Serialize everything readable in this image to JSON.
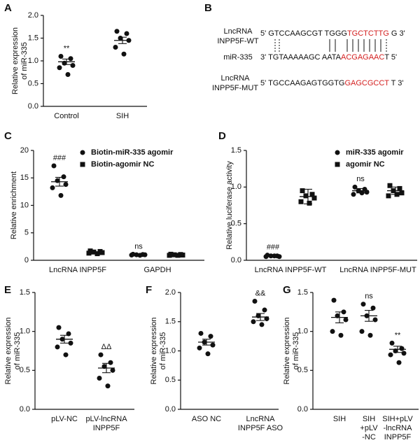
{
  "chart_data": [
    {
      "type": "dotplot",
      "label": "A",
      "ylabel": [
        "Relative expression",
        "of miR-335"
      ],
      "categories": [
        [
          "Control"
        ],
        [
          "SIH"
        ]
      ],
      "ylim": [
        0,
        2
      ],
      "yticks": [
        {
          "value": 0,
          "label": "0.0"
        },
        0.5,
        {
          "value": 1,
          "label": "1.0"
        },
        1.5,
        {
          "value": 2,
          "label": "2.0"
        }
      ],
      "series": [
        {
          "marker": "circle",
          "color": "#111111",
          "points": [
            [
              1.1,
              1.05,
              0.95,
              0.9,
              0.85,
              0.7
            ],
            [
              1.65,
              1.6,
              1.5,
              1.45,
              1.3,
              1.15
            ]
          ],
          "means": [
            0.98,
            1.45
          ],
          "errors": [
            0.06,
            0.07
          ],
          "annotations": [
            "**",
            null
          ]
        }
      ]
    },
    {
      "type": "dotplot",
      "label": "C",
      "ylabel": [
        "Relative enrichment"
      ],
      "categories": [
        [
          "LncRNA INPP5F"
        ],
        [
          "GAPDH"
        ]
      ],
      "ylim": [
        0,
        20
      ],
      "yticks": [
        0,
        5,
        10,
        15,
        20
      ],
      "series": [
        {
          "name": "Biotin-miR-335 agomir",
          "marker": "circle",
          "color": "#111111",
          "points": [
            [
              17.2,
              15.2,
              14.5,
              13.8,
              13.2,
              11.8
            ],
            [
              1.1,
              1.05,
              1.0,
              1.0,
              0.95,
              0.9
            ]
          ],
          "means": [
            14.3,
            1.0
          ],
          "errors": [
            0.8,
            0.03
          ],
          "annotations": [
            "###",
            "ns"
          ]
        },
        {
          "name": "Biotin-agomir NC",
          "marker": "square",
          "color": "#111111",
          "points": [
            [
              1.7,
              1.6,
              1.5,
              1.4,
              1.3,
              1.2
            ],
            [
              1.1,
              1.05,
              1.0,
              0.95,
              0.9,
              0.9
            ]
          ],
          "means": [
            1.45,
            1.0
          ],
          "errors": [
            0.08,
            0.03
          ],
          "annotations": [
            null,
            null
          ]
        }
      ]
    },
    {
      "type": "dotplot",
      "label": "D",
      "ylabel": [
        "Relative luciferase activity"
      ],
      "categories": [
        [
          "LncRNA INPP5F-WT"
        ],
        [
          "LncRNA INPP5F-MUT"
        ]
      ],
      "ylim": [
        0,
        1.5
      ],
      "yticks": [
        {
          "value": 0,
          "label": "0.0"
        },
        0.5,
        {
          "value": 1,
          "label": "1.0"
        },
        1.5
      ],
      "series": [
        {
          "name": "miR-335 agomir",
          "marker": "circle",
          "color": "#111111",
          "points": [
            [
              0.07,
              0.06,
              0.06,
              0.05,
              0.05,
              0.06
            ],
            [
              1.0,
              0.97,
              0.95,
              0.93,
              0.9,
              0.92
            ]
          ],
          "means": [
            0.06,
            0.95
          ],
          "errors": [
            0.005,
            0.03
          ],
          "annotations": [
            "###",
            "ns"
          ]
        },
        {
          "name": "agomir NC",
          "marker": "square",
          "color": "#111111",
          "points": [
            [
              0.95,
              0.9,
              0.88,
              0.85,
              0.8,
              0.78
            ],
            [
              1.02,
              0.98,
              0.95,
              0.92,
              0.88,
              0.9
            ]
          ],
          "means": [
            0.87,
            0.95
          ],
          "errors": [
            0.1,
            0.05
          ],
          "annotations": [
            null,
            null
          ]
        }
      ]
    },
    {
      "type": "dotplot",
      "label": "E",
      "ylabel": [
        "Relative expression",
        "of miR-335"
      ],
      "categories": [
        [
          "pLV-NC"
        ],
        [
          "pLV-lncRNA",
          "INPP5F"
        ]
      ],
      "ylim": [
        0,
        1.5
      ],
      "yticks": [
        {
          "value": 0,
          "label": "0.0"
        },
        0.5,
        {
          "value": 1,
          "label": "1.0"
        },
        1.5
      ],
      "series": [
        {
          "marker": "circle",
          "color": "#111111",
          "points": [
            [
              1.05,
              0.97,
              0.9,
              0.85,
              0.8,
              0.7
            ],
            [
              0.7,
              0.6,
              0.55,
              0.5,
              0.4,
              0.3
            ]
          ],
          "means": [
            0.9,
            0.53
          ],
          "errors": [
            0.05,
            0.06
          ],
          "annotations": [
            null,
            "ΔΔ"
          ]
        }
      ]
    },
    {
      "type": "dotplot",
      "label": "F",
      "ylabel": [
        "Relative expression",
        "of miR-335"
      ],
      "categories": [
        [
          "ASO NC"
        ],
        [
          "LncRNA",
          "INPP5F ASO"
        ]
      ],
      "ylim": [
        0,
        2
      ],
      "yticks": [
        {
          "value": 0,
          "label": "0.0"
        },
        0.5,
        {
          "value": 1,
          "label": "1.0"
        },
        1.5,
        {
          "value": 2,
          "label": "2.0"
        }
      ],
      "series": [
        {
          "marker": "circle",
          "color": "#111111",
          "points": [
            [
              1.3,
              1.25,
              1.15,
              1.1,
              1.05,
              0.95
            ],
            [
              1.85,
              1.7,
              1.6,
              1.55,
              1.5,
              1.45
            ]
          ],
          "means": [
            1.15,
            1.58
          ],
          "errors": [
            0.05,
            0.06
          ],
          "annotations": [
            null,
            "&&"
          ]
        }
      ]
    },
    {
      "type": "dotplot",
      "label": "G",
      "ylabel": [
        "Relative expression",
        "of miR-335"
      ],
      "categories": [
        [
          "SIH"
        ],
        [
          "SIH",
          "+pLV",
          "-NC"
        ],
        [
          "SIH+pLV",
          "-lncRNA",
          "INPP5F"
        ]
      ],
      "ylim": [
        0,
        1.5
      ],
      "yticks": [
        {
          "value": 0,
          "label": "0.0"
        },
        0.5,
        {
          "value": 1,
          "label": "1.0"
        },
        1.5
      ],
      "series": [
        {
          "marker": "circle",
          "color": "#111111",
          "points": [
            [
              1.4,
              1.25,
              1.2,
              1.15,
              1.0,
              0.95
            ],
            [
              1.35,
              1.3,
              1.2,
              1.15,
              1.0,
              0.95
            ],
            [
              0.85,
              0.78,
              0.75,
              0.72,
              0.7,
              0.6
            ]
          ],
          "means": [
            1.18,
            1.2,
            0.77
          ],
          "errors": [
            0.07,
            0.07,
            0.04
          ],
          "annotations": [
            null,
            "ns",
            "**"
          ]
        }
      ]
    }
  ],
  "panel_b": {
    "label": "B",
    "rows": [
      {
        "name": [
          "LncRNA",
          "INPP5F-WT"
        ],
        "sequence": [
          "5' GTCCAAGCGT TGGG",
          "TGCTCTTG",
          " G 3'"
        ]
      },
      {
        "name": [
          "miR-335"
        ],
        "sequence": [
          "3' TGTAAAAAGC AATA",
          "ACGAGAAC",
          "T 5'"
        ]
      },
      {
        "name": [
          "LncRNA",
          "INPP5F-MUT"
        ],
        "sequence": [
          "5' TGCCAAGAGTGGTG",
          "GAGCGCCT",
          " T 3'"
        ]
      }
    ]
  }
}
